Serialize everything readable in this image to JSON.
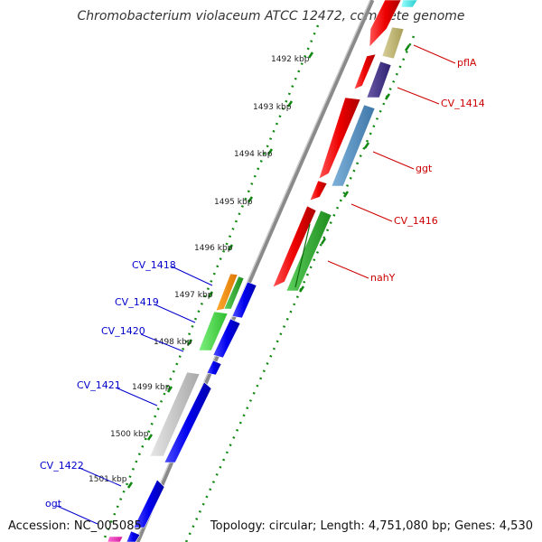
{
  "title": "Chromobacterium violaceum ATCC 12472, complete genome",
  "footer": {
    "accession": "Accession: NC_005085",
    "topology": "Topology: circular; Length: 4,751,080 bp; Genes: 4,530"
  },
  "colors": {
    "backbone": "#8a8a8a",
    "ticks": "#118811",
    "forward_label": "#cc0000",
    "reverse_label": "#0000cc"
  },
  "scale": [
    "1492 kbp",
    "1493 kbp",
    "1494 kbp",
    "1495 kbp",
    "1496 kbp",
    "1497 kbp",
    "1498 kbp",
    "1499 kbp",
    "1500 kbp",
    "1501 kbp"
  ],
  "labels_forward": [
    "pflA",
    "CV_1414",
    "ggt",
    "CV_1416",
    "nahY"
  ],
  "labels_reverse": [
    "CV_1418",
    "CV_1419",
    "CV_1420",
    "CV_1421",
    "CV_1422",
    "ogt"
  ]
}
